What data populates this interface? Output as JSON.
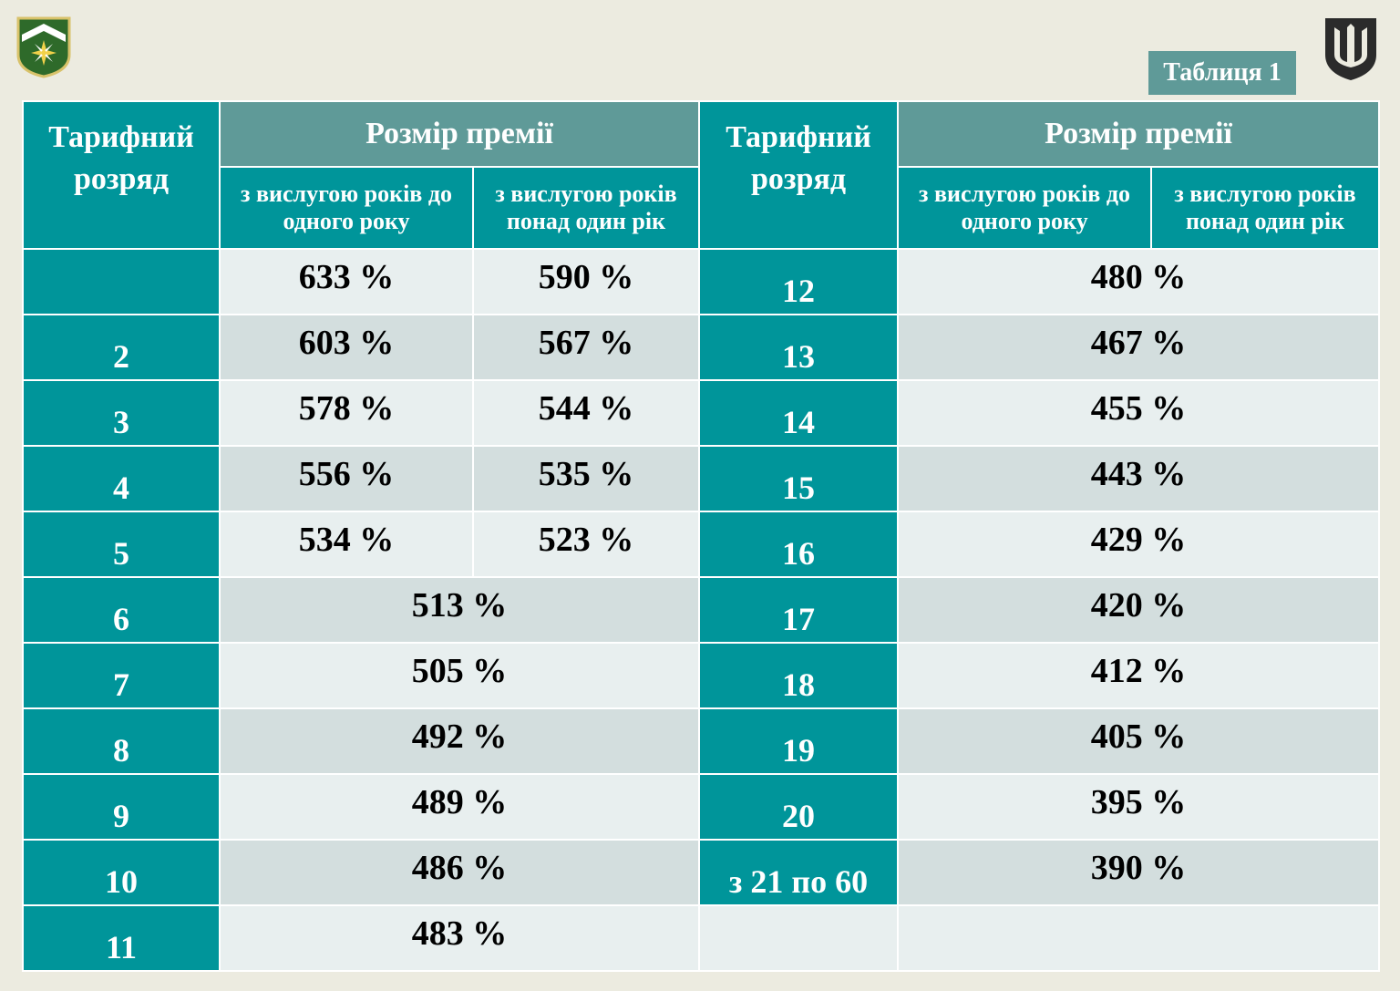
{
  "badge": "Таблиця 1",
  "headers": {
    "rank": "Тарифний розряд",
    "bonus": "Розмір премії",
    "up_to_one_year": "з вислугою років до одного року",
    "over_one_year": "з вислугою років понад один рік"
  },
  "left_rows": [
    {
      "rank": "",
      "v1": "633 %",
      "v2": "590 %"
    },
    {
      "rank": "2",
      "v1": "603 %",
      "v2": "567 %"
    },
    {
      "rank": "3",
      "v1": "578 %",
      "v2": "544 %"
    },
    {
      "rank": "4",
      "v1": "556 %",
      "v2": "535 %"
    },
    {
      "rank": "5",
      "v1": "534 %",
      "v2": "523 %"
    },
    {
      "rank": "6",
      "v": "513 %"
    },
    {
      "rank": "7",
      "v": "505 %"
    },
    {
      "rank": "8",
      "v": "492 %"
    },
    {
      "rank": "9",
      "v": "489 %"
    },
    {
      "rank": "10",
      "v": "486 %"
    },
    {
      "rank": "11",
      "v": "483 %"
    }
  ],
  "right_rows": [
    {
      "rank": "12",
      "v": "480 %"
    },
    {
      "rank": "13",
      "v": "467 %"
    },
    {
      "rank": "14",
      "v": "455 %"
    },
    {
      "rank": "15",
      "v": "443 %"
    },
    {
      "rank": "16",
      "v": "429 %"
    },
    {
      "rank": "17",
      "v": "420 %"
    },
    {
      "rank": "18",
      "v": "412 %"
    },
    {
      "rank": "19",
      "v": "405 %"
    },
    {
      "rank": "20",
      "v": "395 %"
    },
    {
      "rank": "з 21 по 60",
      "v": "390 %"
    },
    {
      "rank": "",
      "v": ""
    }
  ],
  "colors": {
    "teal": "#00959a",
    "gray_teal": "#5f9a98",
    "row_light": "#e8efef",
    "row_dark": "#d3dede",
    "page_bg": "#ecebe0"
  },
  "icons": {
    "left": "unit-emblem-icon",
    "right": "trident-icon"
  }
}
